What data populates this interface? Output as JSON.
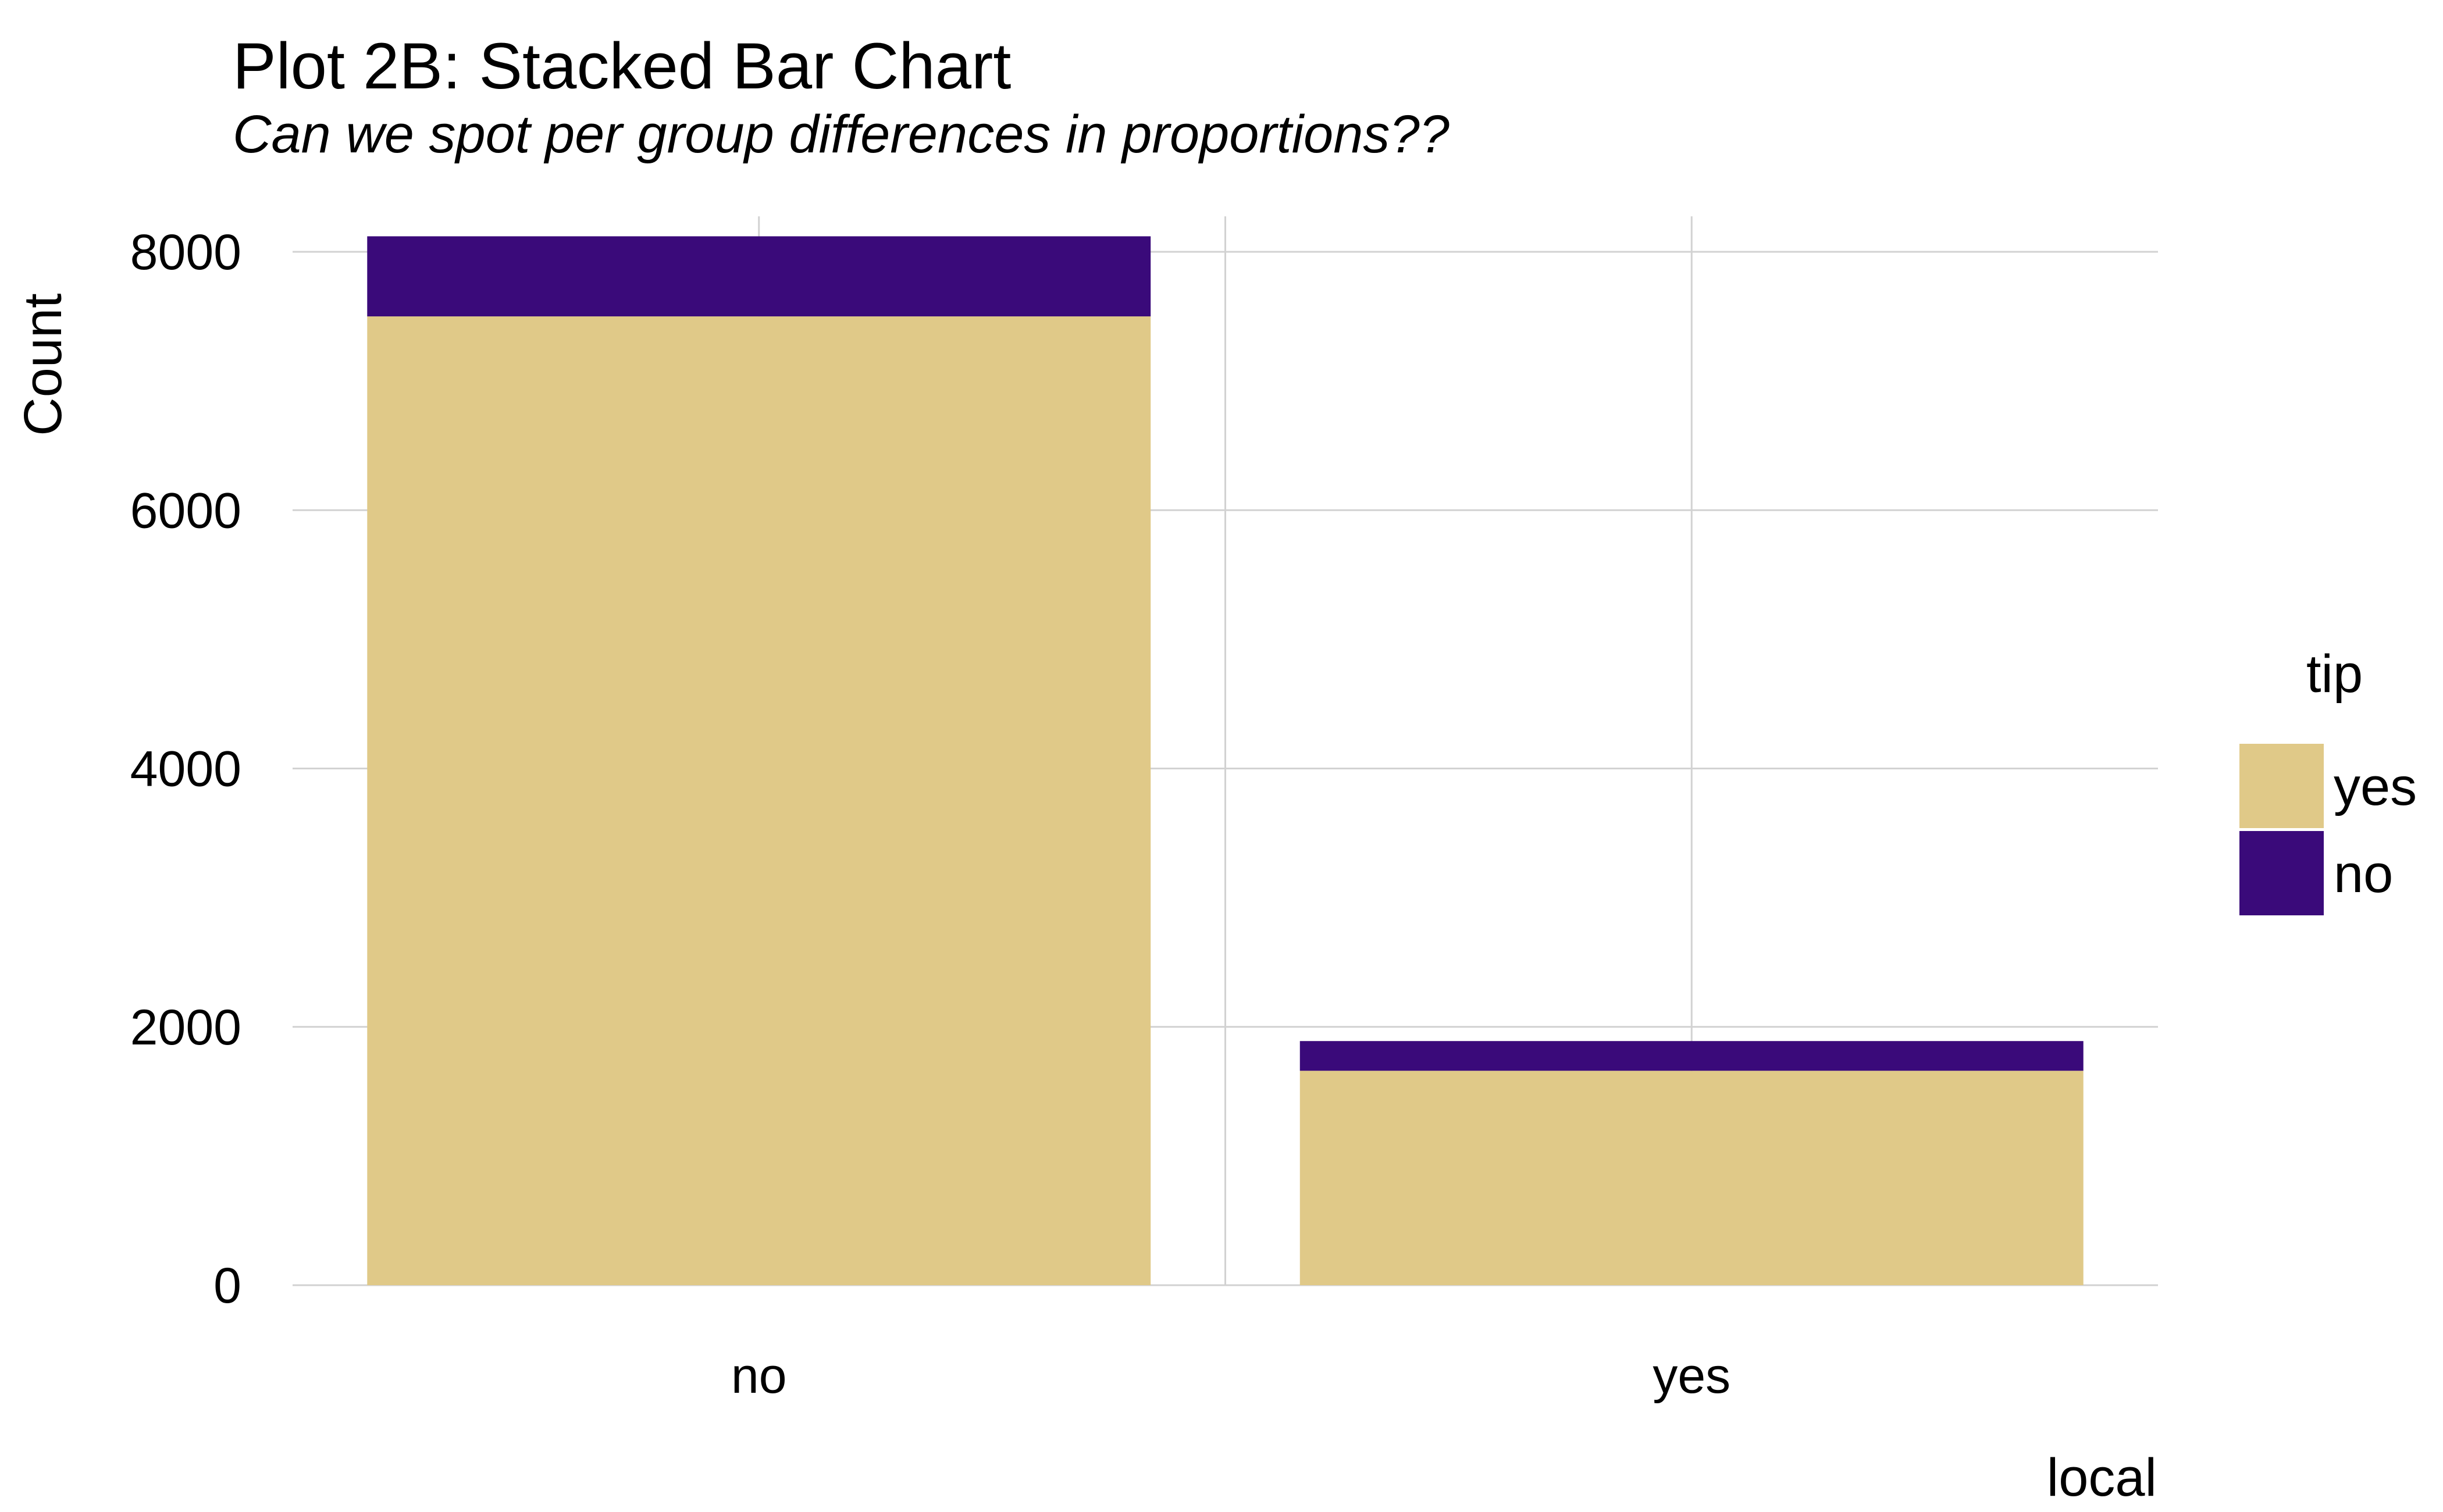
{
  "chart_data": {
    "type": "bar",
    "stacked": true,
    "title": "Plot 2B: Stacked Bar Chart",
    "subtitle": "Can we spot per group differences in proportions??",
    "xlabel": "local",
    "ylabel": "Count",
    "categories": [
      "no",
      "yes"
    ],
    "series": [
      {
        "name": "yes",
        "values": [
          7500,
          1660
        ],
        "color": "#E0C988"
      },
      {
        "name": "no",
        "values": [
          620,
          230
        ],
        "color": "#3A0A7A"
      }
    ],
    "ylim": [
      0,
      8000
    ],
    "yticks": [
      "0",
      "2000",
      "4000",
      "6000",
      "8000"
    ],
    "grid": true,
    "legend": {
      "title": "tip",
      "position": "right",
      "items": [
        "yes",
        "no"
      ]
    }
  }
}
